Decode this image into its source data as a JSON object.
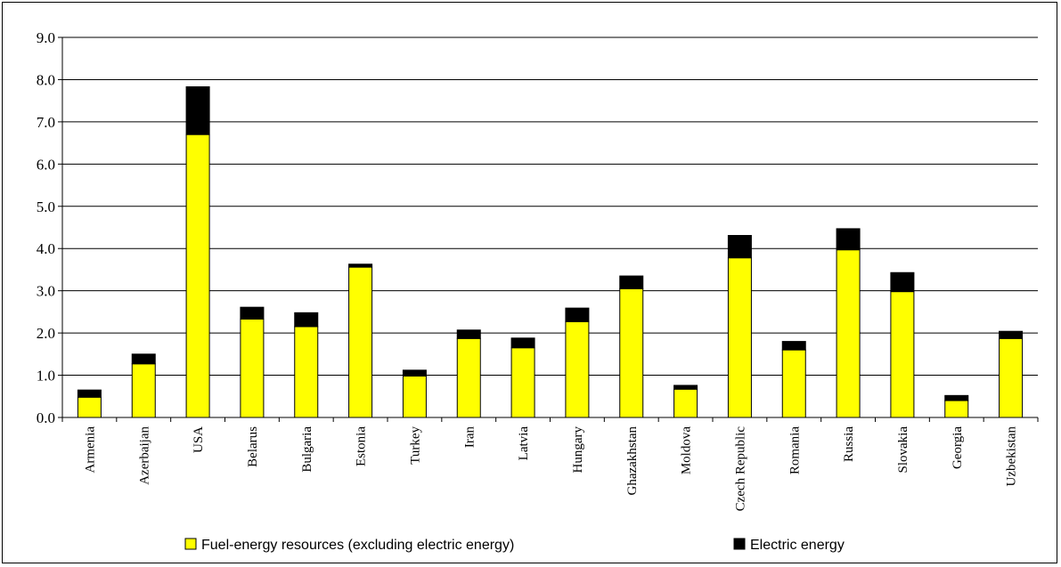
{
  "chart_data": {
    "type": "bar",
    "stacked": true,
    "categories": [
      "Armenia",
      "Azerbaijan",
      "USA",
      "Belarus",
      "Bulgaria",
      "Estonia",
      "Turkey",
      "Iran",
      "Latvia",
      "Hungary",
      "Ghazakhstan",
      "Moldova",
      "Czech Republic",
      "Romania",
      "Russia",
      "Slovakia",
      "Georgia",
      "Uzbekistan"
    ],
    "series": [
      {
        "name": "Fuel-energy resources (excluding electric energy)",
        "color": "#ffff00",
        "values": [
          0.48,
          1.27,
          6.7,
          2.33,
          2.15,
          3.56,
          0.98,
          1.87,
          1.65,
          2.27,
          3.05,
          0.67,
          3.78,
          1.6,
          3.97,
          2.98,
          0.4,
          1.87
        ]
      },
      {
        "name": "Electric energy",
        "color": "#000000",
        "values": [
          0.17,
          0.23,
          1.13,
          0.28,
          0.33,
          0.07,
          0.14,
          0.2,
          0.23,
          0.32,
          0.3,
          0.09,
          0.53,
          0.2,
          0.5,
          0.45,
          0.12,
          0.17
        ]
      }
    ],
    "ylim": [
      0,
      9
    ],
    "yticks": [
      "0.0",
      "1.0",
      "2.0",
      "3.0",
      "4.0",
      "5.0",
      "6.0",
      "7.0",
      "8.0",
      "9.0"
    ],
    "grid": true,
    "legend_position": "bottom"
  }
}
